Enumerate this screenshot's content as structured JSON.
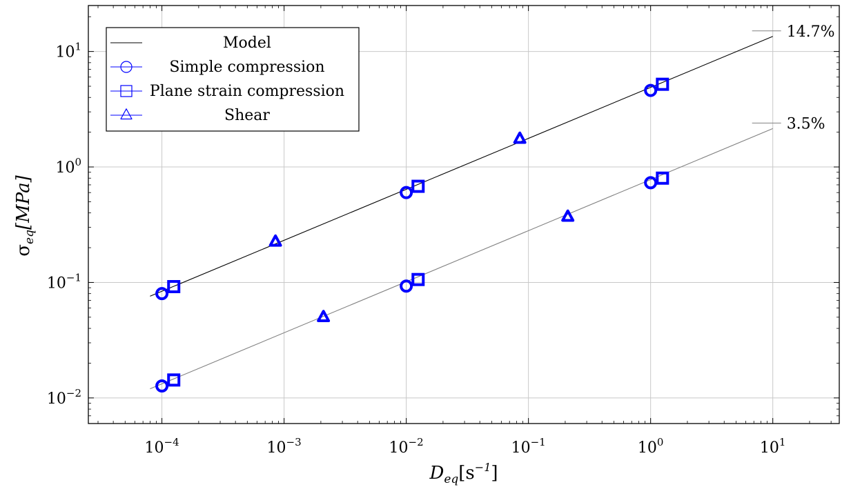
{
  "chart_data": {
    "type": "scatter",
    "x_scale": "log",
    "y_scale": "log",
    "xlim": [
      2.5e-05,
      35
    ],
    "ylim": [
      0.006,
      25
    ],
    "grid": true,
    "legend_position": "top-left",
    "xlabel": {
      "main": "D",
      "sub": "eq",
      "rest": "[s",
      "sup": "−1",
      "end": "]"
    },
    "ylabel": {
      "main": "σ",
      "sub": "eq",
      "rest": "[MPa]"
    },
    "x_ticks": [
      {
        "base": "10",
        "exp": "−4",
        "value": 0.0001
      },
      {
        "base": "10",
        "exp": "−3",
        "value": 0.001
      },
      {
        "base": "10",
        "exp": "−2",
        "value": 0.01
      },
      {
        "base": "10",
        "exp": "−1",
        "value": 0.1
      },
      {
        "base": "10",
        "exp": "0",
        "value": 1
      },
      {
        "base": "10",
        "exp": "1",
        "value": 10
      }
    ],
    "y_ticks": [
      {
        "base": "10",
        "exp": "−2",
        "value": 0.01
      },
      {
        "base": "10",
        "exp": "−1",
        "value": 0.1
      },
      {
        "base": "10",
        "exp": "0",
        "value": 1
      },
      {
        "base": "10",
        "exp": "1",
        "value": 10
      }
    ],
    "legend": [
      {
        "name": "Model",
        "marker": "none",
        "color": "#000000"
      },
      {
        "name": "Simple compression",
        "marker": "circle",
        "color": "#0000ff"
      },
      {
        "name": "Plane strain compression",
        "marker": "square",
        "color": "#0000ff"
      },
      {
        "name": "Shear",
        "marker": "triangle",
        "color": "#0000ff"
      }
    ],
    "model_lines": [
      {
        "label": "14.7%",
        "color": "#000000",
        "x": [
          8e-05,
          10
        ],
        "y": [
          0.076,
          13.5
        ]
      },
      {
        "label": "3.5%",
        "color": "#808080",
        "x": [
          8e-05,
          10
        ],
        "y": [
          0.012,
          2.15
        ]
      }
    ],
    "series": [
      {
        "name": "Simple compression",
        "marker": "circle",
        "color": "#0000ff",
        "x": [
          0.0001,
          0.01,
          1,
          0.0001,
          0.01,
          1
        ],
        "y": [
          0.08,
          0.6,
          4.6,
          0.0127,
          0.093,
          0.73
        ]
      },
      {
        "name": "Plane strain compression",
        "marker": "square",
        "color": "#0000ff",
        "x": [
          0.000125,
          0.0125,
          1.25,
          0.000125,
          0.0125,
          1.25
        ],
        "y": [
          0.092,
          0.68,
          5.2,
          0.0143,
          0.106,
          0.8
        ]
      },
      {
        "name": "Shear",
        "marker": "triangle",
        "color": "#0000ff",
        "x": [
          0.00085,
          0.085,
          0.0021,
          0.21
        ],
        "y": [
          0.225,
          1.75,
          0.05,
          0.37
        ]
      }
    ]
  }
}
